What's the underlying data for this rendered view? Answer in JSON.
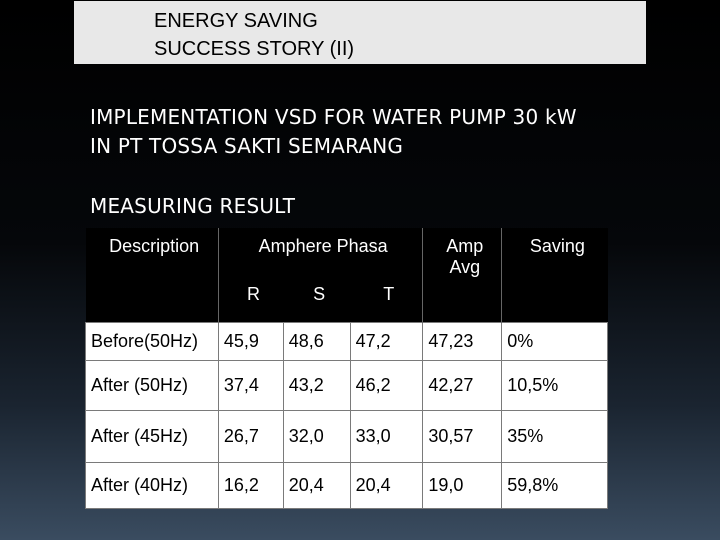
{
  "title": {
    "line1": "ENERGY SAVING",
    "line2": "SUCCESS STORY (II)"
  },
  "heading": {
    "line1": "IMPLEMENTATION VSD FOR WATER PUMP 30 kW",
    "line2": "IN PT TOSSA SAKTI SEMARANG",
    "section": "MEASURING RESULT"
  },
  "table": {
    "headers": {
      "description": "Description",
      "amphere": "Amphere Phasa",
      "amp_avg_1": "Amp",
      "amp_avg_2": "Avg",
      "saving": "Saving",
      "r": "R",
      "s": "S",
      "t": "T"
    },
    "rows": [
      {
        "desc": "Before(50Hz)",
        "r": "45,9",
        "s": "48,6",
        "t": "47,2",
        "avg": "47,23",
        "saving": "0%"
      },
      {
        "desc": "After (50Hz)",
        "r": "37,4",
        "s": "43,2",
        "t": "46,2",
        "avg": "42,27",
        "saving": "10,5%"
      },
      {
        "desc": "After (45Hz)",
        "r": "26,7",
        "s": "32,0",
        "t": "33,0",
        "avg": "30,57",
        "saving": "35%"
      },
      {
        "desc": "After (40Hz)",
        "r": "16,2",
        "s": "20,4",
        "t": "20,4",
        "avg": "19,0",
        "saving": "59,8%"
      }
    ]
  }
}
